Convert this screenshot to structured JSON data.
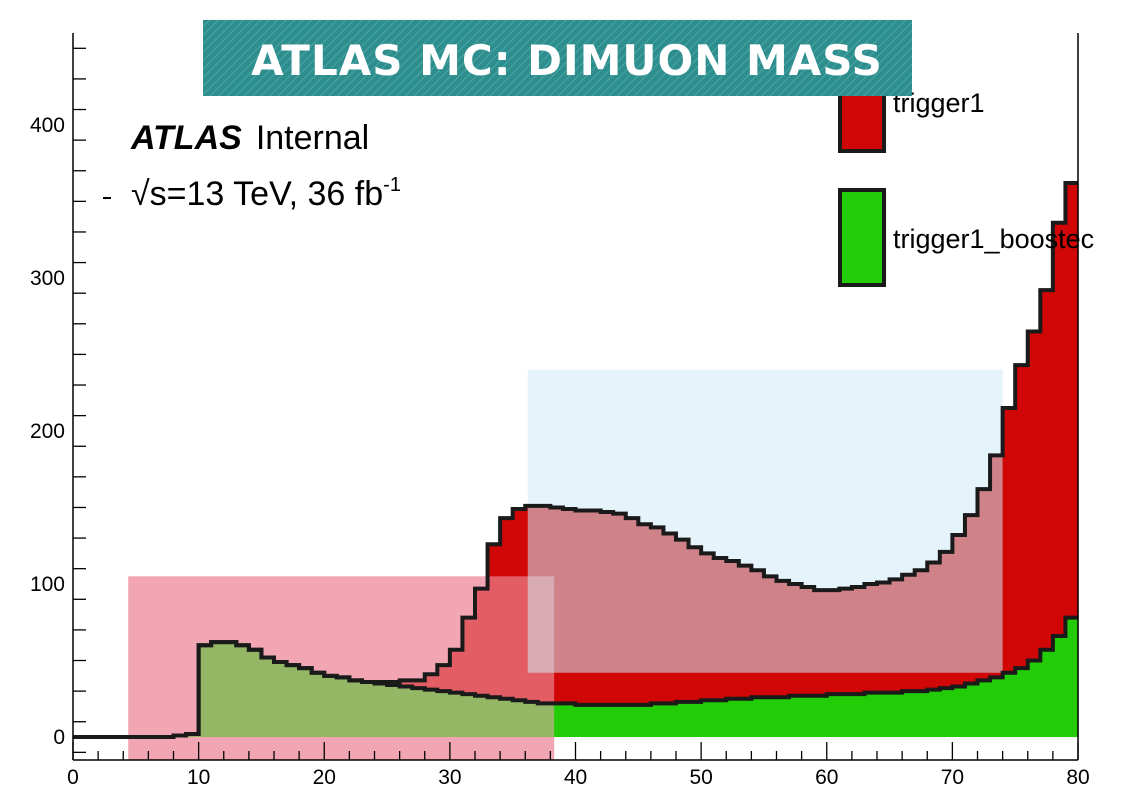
{
  "title": "ATLAS MC: DIMUON MASS",
  "atlas_label": {
    "experiment": "ATLAS",
    "status": "Internal",
    "energy_prefix": "√s=13 TeV, 36 fb",
    "energy_sup": "-1"
  },
  "colors": {
    "title_banner": "#2e8d8d",
    "trigger1": "#d10606",
    "trigger1_boosted": "#22cc06",
    "outline": "#1a1a1a",
    "highlight_pink": "#f2a6b4",
    "highlight_blue": "#cfe9f6"
  },
  "chart_data": {
    "type": "area",
    "histogram": "stacked step",
    "xlim": [
      0,
      80
    ],
    "ylim": [
      -15,
      460
    ],
    "x_ticks": [
      0,
      10,
      20,
      30,
      40,
      50,
      60,
      70,
      80
    ],
    "y_ticks": [
      0,
      100,
      200,
      300,
      400
    ],
    "bin_width": 1,
    "x": [
      0,
      1,
      2,
      3,
      4,
      5,
      6,
      7,
      8,
      9,
      10,
      11,
      12,
      13,
      14,
      15,
      16,
      17,
      18,
      19,
      20,
      21,
      22,
      23,
      24,
      25,
      26,
      27,
      28,
      29,
      30,
      31,
      32,
      33,
      34,
      35,
      36,
      37,
      38,
      39,
      40,
      41,
      42,
      43,
      44,
      45,
      46,
      47,
      48,
      49,
      50,
      51,
      52,
      53,
      54,
      55,
      56,
      57,
      58,
      59,
      60,
      61,
      62,
      63,
      64,
      65,
      66,
      67,
      68,
      69,
      70,
      71,
      72,
      73,
      74,
      75,
      76,
      77,
      78,
      79
    ],
    "series": [
      {
        "name": "trigger1_boosted",
        "values": [
          0,
          0,
          0,
          0,
          0,
          0,
          0,
          0,
          1,
          2,
          60,
          62,
          62,
          60,
          57,
          52,
          49,
          47,
          45,
          42,
          40,
          39,
          37,
          36,
          35,
          34,
          33,
          32,
          31,
          30,
          29,
          28,
          27,
          26,
          25,
          24,
          23,
          22,
          22,
          22,
          21,
          21,
          21,
          21,
          21,
          21,
          22,
          22,
          23,
          23,
          24,
          24,
          25,
          25,
          26,
          26,
          26,
          27,
          27,
          27,
          28,
          28,
          28,
          29,
          29,
          29,
          30,
          30,
          31,
          32,
          33,
          35,
          37,
          39,
          42,
          45,
          50,
          57,
          66,
          78
        ]
      },
      {
        "name": "trigger1",
        "values": [
          0,
          0,
          0,
          0,
          0,
          0,
          0,
          0,
          0,
          0,
          0,
          0,
          0,
          0,
          0,
          0,
          0,
          0,
          0,
          0,
          0,
          0,
          0,
          0,
          1,
          2,
          4,
          5,
          10,
          17,
          28,
          50,
          70,
          100,
          118,
          125,
          128,
          129,
          128,
          127,
          127,
          127,
          126,
          125,
          122,
          118,
          115,
          111,
          106,
          101,
          96,
          93,
          90,
          87,
          83,
          79,
          76,
          73,
          71,
          69,
          68,
          69,
          70,
          71,
          72,
          74,
          76,
          79,
          83,
          89,
          99,
          110,
          125,
          145,
          173,
          198,
          215,
          235,
          270,
          284
        ]
      }
    ]
  },
  "legend": [
    {
      "label": "trigger1",
      "color": "#d10606"
    },
    {
      "label": "trigger1_boostec",
      "color": "#22cc06"
    }
  ]
}
